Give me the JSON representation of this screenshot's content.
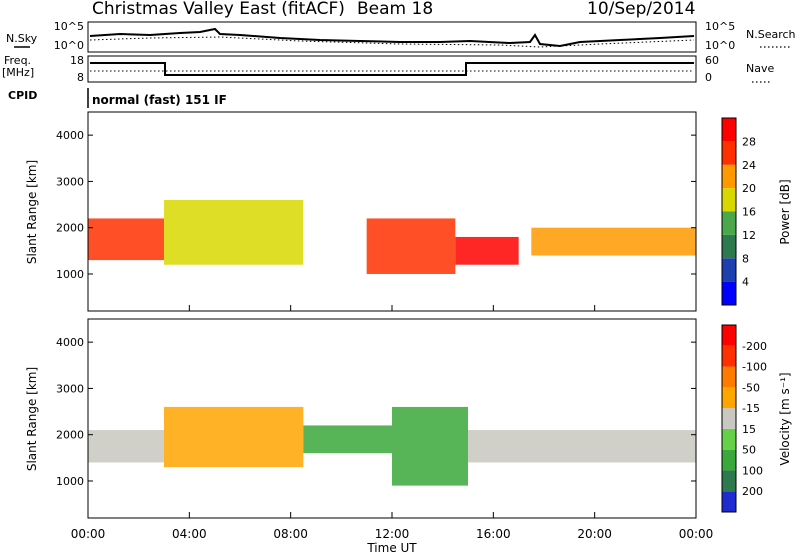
{
  "header": {
    "station": "Christmas Valley East (fitACF)",
    "beam": "Beam 18",
    "date": "10/Sep/2014"
  },
  "top_panels": {
    "nsky_label": "N.Sky",
    "nsearch_label": "N.Search",
    "noise_ticks": [
      "10^5",
      "10^0"
    ],
    "freq_label_1": "Freq.",
    "freq_label_2": "[MHz]",
    "freq_ticks": [
      "18",
      "8"
    ],
    "nave_label": "Nave",
    "nave_ticks": [
      "60",
      "0"
    ],
    "cpid_label": "CPID",
    "cpid_text": "normal (fast) 151 IF"
  },
  "chart_data": [
    {
      "type": "heatmap",
      "name": "power",
      "ylabel": "Slant Range [km]",
      "yticks": [
        1000,
        2000,
        3000,
        4000
      ],
      "ylim": [
        200,
        4500
      ],
      "colorbar_label": "Power [dB]",
      "colorbar_ticks": [
        4,
        8,
        12,
        16,
        20,
        24,
        28
      ],
      "colorbar_colors": [
        "#0000ff",
        "#1e3fb0",
        "#2e7a4f",
        "#4aa84a",
        "#d8d800",
        "#ff9900",
        "#ff3000",
        "#ff0000"
      ],
      "regions": [
        {
          "x0": 0.0,
          "x1": 3.0,
          "ymin": 1300,
          "ymax": 2200,
          "value": 24
        },
        {
          "x0": 3.0,
          "x1": 8.5,
          "ymin": 1200,
          "ymax": 2600,
          "value": 18
        },
        {
          "x0": 11.0,
          "x1": 14.5,
          "ymin": 1000,
          "ymax": 2200,
          "value": 26
        },
        {
          "x0": 14.5,
          "x1": 17.0,
          "ymin": 1200,
          "ymax": 1800,
          "value": 28
        },
        {
          "x0": 17.5,
          "x1": 24.0,
          "ymin": 1400,
          "ymax": 2000,
          "value": 20
        }
      ]
    },
    {
      "type": "heatmap",
      "name": "velocity",
      "ylabel": "Slant Range [km]",
      "yticks": [
        1000,
        2000,
        3000,
        4000
      ],
      "ylim": [
        200,
        4500
      ],
      "colorbar_label": "Velocity [m s⁻¹]",
      "colorbar_ticks": [
        200,
        100,
        50,
        15,
        -15,
        -50,
        -100,
        -200
      ],
      "colorbar_colors": [
        "#1e2bd0",
        "#2e7a4f",
        "#3aa83a",
        "#66d04a",
        "#c8c8c0",
        "#ffa500",
        "#ff7a00",
        "#ff3000",
        "#ff0000"
      ],
      "regions": [
        {
          "x0": 0.0,
          "x1": 3.0,
          "ymin": 1400,
          "ymax": 2100,
          "value": 0
        },
        {
          "x0": 3.0,
          "x1": 8.5,
          "ymin": 1300,
          "ymax": 2600,
          "value": -20
        },
        {
          "x0": 8.5,
          "x1": 12.0,
          "ymin": 1600,
          "ymax": 2200,
          "value": 60
        },
        {
          "x0": 12.0,
          "x1": 15.0,
          "ymin": 900,
          "ymax": 2600,
          "value": 60
        },
        {
          "x0": 15.0,
          "x1": 24.0,
          "ymin": 1400,
          "ymax": 2100,
          "value": 0
        }
      ]
    }
  ],
  "x_axis": {
    "label": "Time UT",
    "ticks": [
      "00:00",
      "04:00",
      "08:00",
      "12:00",
      "16:00",
      "20:00",
      "00:00"
    ]
  }
}
